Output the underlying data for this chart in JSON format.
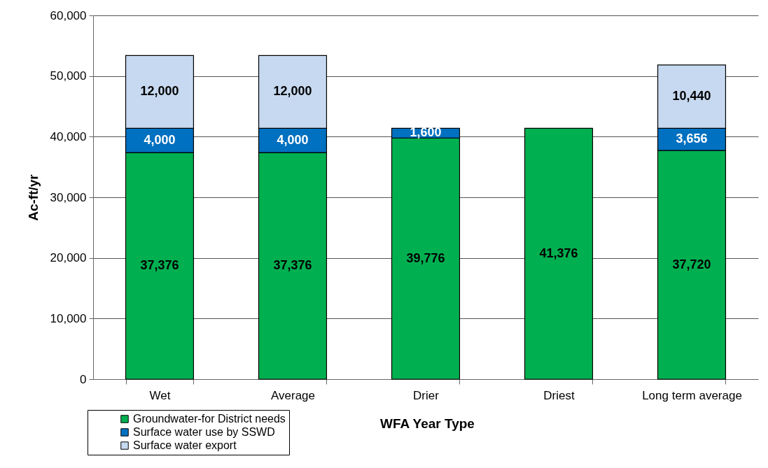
{
  "chart_data": {
    "type": "bar",
    "stacked": true,
    "xlabel": "WFA Year Type",
    "ylabel": "Ac-ft/yr",
    "categories": [
      "Wet",
      "Average",
      "Drier",
      "Driest",
      "Long term average"
    ],
    "series": [
      {
        "name": "Groundwater-for District needs",
        "color": "#00b050",
        "values": [
          37376,
          37376,
          39776,
          41376,
          37720
        ],
        "value_labels": [
          "37,376",
          "37,376",
          "39,776",
          "41,376",
          "37,720"
        ]
      },
      {
        "name": "Surface water use by SSWD",
        "color": "#0070c0",
        "values": [
          4000,
          4000,
          1600,
          null,
          3656
        ],
        "value_labels": [
          "4,000",
          "4,000",
          "1,600",
          null,
          "3,656"
        ]
      },
      {
        "name": "Surface water export",
        "color": "#c6d9f0",
        "values": [
          12000,
          12000,
          null,
          null,
          10440
        ],
        "value_labels": [
          "12,000",
          "12,000",
          null,
          null,
          "10,440"
        ]
      }
    ],
    "ylim": [
      0,
      60000
    ],
    "yticks": [
      0,
      {
        "value": 10000,
        "label": "10,000"
      },
      {
        "value": 20000,
        "label": "20,000"
      },
      {
        "value": 30000,
        "label": "30,000"
      },
      {
        "value": 40000,
        "label": "40,000"
      },
      {
        "value": 50000,
        "label": "50,000"
      },
      {
        "value": 60000,
        "label": "60,000"
      }
    ],
    "grid": "y",
    "legend": "bottom left"
  }
}
